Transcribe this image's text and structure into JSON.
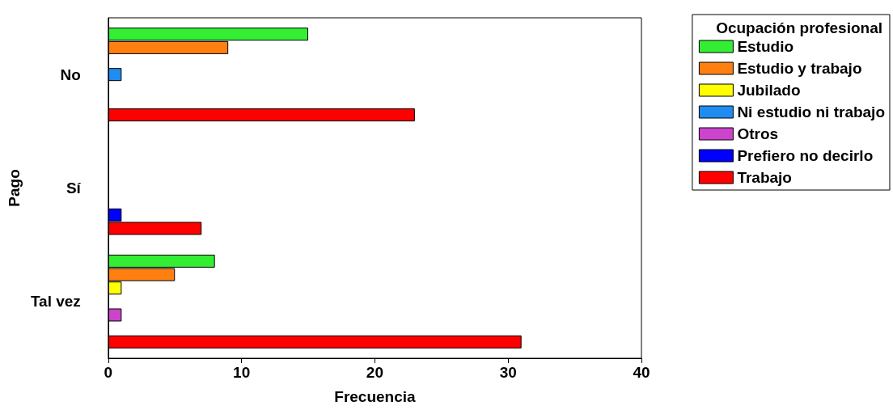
{
  "chart_data": {
    "type": "bar",
    "orientation": "horizontal",
    "xlabel": "Frecuencia",
    "ylabel": "Pago",
    "legend_title": "Ocupación profesional",
    "legend": "right",
    "categories": [
      "No",
      "Sí",
      "Tal vez"
    ],
    "series": [
      {
        "name": "Estudio",
        "color": "#33ee33",
        "values": [
          15,
          null,
          8
        ]
      },
      {
        "name": "Estudio y trabajo",
        "color": "#ff8011",
        "values": [
          9,
          null,
          5
        ]
      },
      {
        "name": "Jubilado",
        "color": "#ffff00",
        "values": [
          null,
          null,
          1
        ]
      },
      {
        "name": "Ni estudio ni trabajo",
        "color": "#1e8cf0",
        "values": [
          1,
          null,
          null
        ]
      },
      {
        "name": "Otros",
        "color": "#cc44cc",
        "values": [
          null,
          null,
          1
        ]
      },
      {
        "name": "Prefiero no decirlo",
        "color": "#0000ff",
        "values": [
          null,
          1,
          null
        ]
      },
      {
        "name": "Trabajo",
        "color": "#ff0000",
        "values": [
          23,
          7,
          31
        ]
      }
    ],
    "xlim": [
      0,
      40
    ],
    "xticks": [
      0,
      10,
      20,
      30,
      40
    ],
    "grid": false
  }
}
